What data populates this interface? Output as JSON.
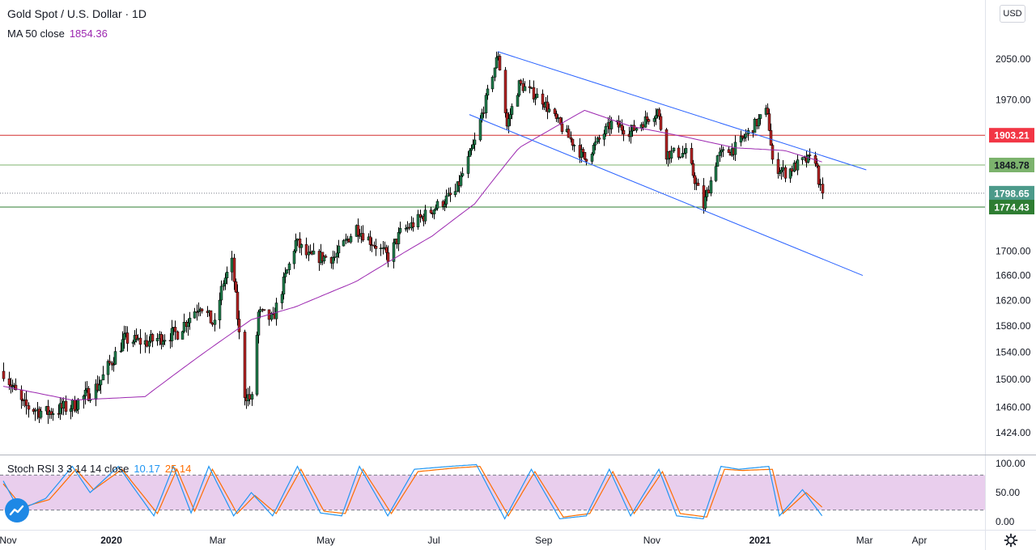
{
  "header": {
    "title": "Gold Spot / U.S. Dollar · 1D",
    "ma_label": "MA 50 close",
    "ma_value": "1854.36",
    "stoch_label": "Stoch RSI 3 3 14 14 close",
    "stoch_k": "10.17",
    "stoch_d": "25.14",
    "currency_button": "USD"
  },
  "colors": {
    "up": "#26a69a",
    "down": "#ef5350",
    "candle_body_up": "#1f7a4a",
    "candle_body_down": "#b22222",
    "ma": "#9c27b0",
    "channel": "#2962ff",
    "resistance": "#d32f2f",
    "support_light": "#7cb36d",
    "support_dark": "#2e7d32",
    "stoch_k": "#2196f3",
    "stoch_d": "#ff6d00",
    "stoch_band": "#e1bee7"
  },
  "icons": {
    "logo": "tradingview-logo-icon",
    "settings": "gear-icon"
  },
  "chart_data": {
    "type": "candlestick",
    "title": "Gold Spot / U.S. Dollar · 1D",
    "ylim": [
      1400,
      2100
    ],
    "y_ticks": [
      "2050.00",
      "1970.00",
      "1700.00",
      "1660.00",
      "1620.00",
      "1580.00",
      "1540.00",
      "1500.00",
      "1460.00",
      "1424.00"
    ],
    "x_labels": [
      "Nov",
      "2020",
      "Mar",
      "May",
      "Jul",
      "Sep",
      "Nov",
      "2021",
      "Mar",
      "Apr"
    ],
    "price_labels": [
      {
        "value": "1903.21",
        "kind": "resistance"
      },
      {
        "value": "1848.78",
        "kind": "support_light"
      },
      {
        "value": "1798.65",
        "kind": "current"
      },
      {
        "value": "1774.43",
        "kind": "support_dark"
      }
    ],
    "horizontal_levels": [
      1903.21,
      1848.78,
      1774.43
    ],
    "current_price": 1798.65,
    "anchors": [
      [
        "2019-11-01",
        1512
      ],
      [
        "2019-11-12",
        1462
      ],
      [
        "2019-11-25",
        1452
      ],
      [
        "2019-12-10",
        1462
      ],
      [
        "2019-12-24",
        1490
      ],
      [
        "2020-01-08",
        1560
      ],
      [
        "2020-01-20",
        1555
      ],
      [
        "2020-02-07",
        1570
      ],
      [
        "2020-02-20",
        1615
      ],
      [
        "2020-02-28",
        1580
      ],
      [
        "2020-03-04",
        1650
      ],
      [
        "2020-03-09",
        1680
      ],
      [
        "2020-03-16",
        1480
      ],
      [
        "2020-03-20",
        1470
      ],
      [
        "2020-03-24",
        1600
      ],
      [
        "2020-04-01",
        1590
      ],
      [
        "2020-04-14",
        1715
      ],
      [
        "2020-04-21",
        1690
      ],
      [
        "2020-05-06",
        1690
      ],
      [
        "2020-05-18",
        1740
      ],
      [
        "2020-06-05",
        1690
      ],
      [
        "2020-06-12",
        1730
      ],
      [
        "2020-06-30",
        1770
      ],
      [
        "2020-07-13",
        1800
      ],
      [
        "2020-07-24",
        1890
      ],
      [
        "2020-08-06",
        2060
      ],
      [
        "2020-08-11",
        1920
      ],
      [
        "2020-08-18",
        2000
      ],
      [
        "2020-08-31",
        1970
      ],
      [
        "2020-09-08",
        1930
      ],
      [
        "2020-09-24",
        1860
      ],
      [
        "2020-10-09",
        1925
      ],
      [
        "2020-10-20",
        1910
      ],
      [
        "2020-11-04",
        1950
      ],
      [
        "2020-11-09",
        1870
      ],
      [
        "2020-11-20",
        1870
      ],
      [
        "2020-11-30",
        1776
      ],
      [
        "2020-12-08",
        1865
      ],
      [
        "2020-12-18",
        1880
      ],
      [
        "2021-01-05",
        1950
      ],
      [
        "2021-01-08",
        1850
      ],
      [
        "2021-01-15",
        1835
      ],
      [
        "2021-01-25",
        1855
      ],
      [
        "2021-02-01",
        1860
      ],
      [
        "2021-02-04",
        1805
      ],
      [
        "2021-02-05",
        1798.65
      ]
    ],
    "ma50": [
      [
        "2019-11-01",
        1490
      ],
      [
        "2019-12-10",
        1470
      ],
      [
        "2020-01-20",
        1475
      ],
      [
        "2020-02-20",
        1535
      ],
      [
        "2020-03-20",
        1590
      ],
      [
        "2020-04-14",
        1610
      ],
      [
        "2020-05-18",
        1650
      ],
      [
        "2020-06-30",
        1725
      ],
      [
        "2020-07-24",
        1780
      ],
      [
        "2020-08-18",
        1880
      ],
      [
        "2020-09-24",
        1950
      ],
      [
        "2020-10-20",
        1920
      ],
      [
        "2020-11-20",
        1900
      ],
      [
        "2020-12-18",
        1880
      ],
      [
        "2021-01-15",
        1875
      ],
      [
        "2021-02-05",
        1854.36
      ]
    ],
    "channel_lines": [
      {
        "from": [
          "2020-08-06",
          2065
        ],
        "to": [
          "2021-03-02",
          1840
        ]
      },
      {
        "from": [
          "2020-07-21",
          1942
        ],
        "to": [
          "2021-02-28",
          1660
        ]
      }
    ],
    "stoch_rsi": {
      "ylim": [
        0,
        100
      ],
      "band": [
        20,
        80
      ],
      "y_ticks": [
        "100.00",
        "50.00",
        "0.00"
      ],
      "k_anchors": [
        [
          "2019-11-01",
          70
        ],
        [
          "2019-11-10",
          20
        ],
        [
          "2019-11-25",
          40
        ],
        [
          "2019-12-10",
          95
        ],
        [
          "2019-12-20",
          50
        ],
        [
          "2020-01-05",
          95
        ],
        [
          "2020-01-25",
          10
        ],
        [
          "2020-02-05",
          95
        ],
        [
          "2020-02-15",
          15
        ],
        [
          "2020-02-25",
          95
        ],
        [
          "2020-03-10",
          10
        ],
        [
          "2020-03-20",
          50
        ],
        [
          "2020-04-01",
          10
        ],
        [
          "2020-04-15",
          95
        ],
        [
          "2020-04-28",
          15
        ],
        [
          "2020-05-10",
          10
        ],
        [
          "2020-05-20",
          95
        ],
        [
          "2020-06-05",
          10
        ],
        [
          "2020-06-20",
          90
        ],
        [
          "2020-07-10",
          95
        ],
        [
          "2020-07-25",
          98
        ],
        [
          "2020-08-10",
          5
        ],
        [
          "2020-08-25",
          90
        ],
        [
          "2020-09-10",
          5
        ],
        [
          "2020-09-25",
          10
        ],
        [
          "2020-10-08",
          90
        ],
        [
          "2020-10-20",
          10
        ],
        [
          "2020-11-05",
          90
        ],
        [
          "2020-11-15",
          10
        ],
        [
          "2020-11-30",
          5
        ],
        [
          "2020-12-10",
          95
        ],
        [
          "2020-12-20",
          90
        ],
        [
          "2021-01-06",
          95
        ],
        [
          "2021-01-12",
          10
        ],
        [
          "2021-01-25",
          55
        ],
        [
          "2021-02-05",
          10.17
        ]
      ],
      "d_anchors": [
        [
          "2019-11-01",
          65
        ],
        [
          "2019-11-12",
          25
        ],
        [
          "2019-11-27",
          38
        ],
        [
          "2019-12-12",
          90
        ],
        [
          "2019-12-22",
          55
        ],
        [
          "2020-01-07",
          90
        ],
        [
          "2020-01-27",
          14
        ],
        [
          "2020-02-07",
          90
        ],
        [
          "2020-02-17",
          18
        ],
        [
          "2020-02-27",
          90
        ],
        [
          "2020-03-12",
          14
        ],
        [
          "2020-03-22",
          45
        ],
        [
          "2020-04-03",
          14
        ],
        [
          "2020-04-17",
          90
        ],
        [
          "2020-04-30",
          18
        ],
        [
          "2020-05-12",
          14
        ],
        [
          "2020-05-22",
          90
        ],
        [
          "2020-06-07",
          14
        ],
        [
          "2020-06-22",
          86
        ],
        [
          "2020-07-12",
          92
        ],
        [
          "2020-07-27",
          95
        ],
        [
          "2020-08-12",
          10
        ],
        [
          "2020-08-27",
          86
        ],
        [
          "2020-09-12",
          8
        ],
        [
          "2020-09-27",
          14
        ],
        [
          "2020-10-10",
          86
        ],
        [
          "2020-10-22",
          14
        ],
        [
          "2020-11-07",
          86
        ],
        [
          "2020-11-17",
          14
        ],
        [
          "2020-12-02",
          8
        ],
        [
          "2020-12-12",
          90
        ],
        [
          "2020-12-22",
          88
        ],
        [
          "2021-01-08",
          90
        ],
        [
          "2021-01-14",
          14
        ],
        [
          "2021-01-27",
          50
        ],
        [
          "2021-02-05",
          25.14
        ]
      ]
    }
  }
}
